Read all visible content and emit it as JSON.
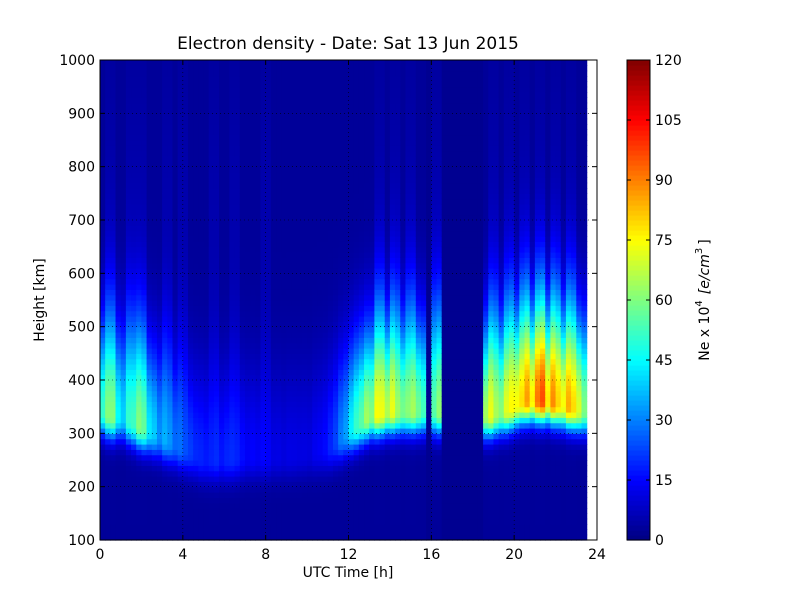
{
  "chart_data": {
    "type": "heatmap",
    "title": "Electron density - Date: Sat 13 Jun 2015",
    "xlabel": "UTC Time [h]",
    "ylabel": "Height [km]",
    "xlim": [
      0,
      24
    ],
    "ylim": [
      100,
      1000
    ],
    "x_ticks": [
      "0",
      "4",
      "8",
      "12",
      "16",
      "20",
      "24"
    ],
    "y_ticks": [
      "100",
      "200",
      "300",
      "400",
      "500",
      "600",
      "700",
      "800",
      "900",
      "1000"
    ],
    "grid": true,
    "colormap": "jet",
    "colorbar": {
      "label_prefix": "Ne x 10",
      "label_exp": "4",
      "label_unit": "[e/cm",
      "label_unit_exp": "3",
      "label_close": "]",
      "range": [
        0,
        120
      ],
      "ticks": [
        "0",
        "15",
        "30",
        "45",
        "60",
        "75",
        "90",
        "105",
        "120"
      ]
    },
    "time_step_h": 0.25,
    "data_end_h": 23.5,
    "gaps_h": [
      [
        15.75,
        16.0
      ],
      [
        16.5,
        18.5
      ]
    ],
    "profiles": [
      {
        "t": 0.0,
        "hmF2": 340,
        "peak": 60
      },
      {
        "t": 0.5,
        "hmF2": 330,
        "peak": 75
      },
      {
        "t": 1.0,
        "hmF2": 330,
        "peak": 55
      },
      {
        "t": 1.5,
        "hmF2": 320,
        "peak": 60
      },
      {
        "t": 2.0,
        "hmF2": 310,
        "peak": 70
      },
      {
        "t": 3.0,
        "hmF2": 290,
        "peak": 40
      },
      {
        "t": 4.0,
        "hmF2": 270,
        "peak": 30
      },
      {
        "t": 5.0,
        "hmF2": 250,
        "peak": 20
      },
      {
        "t": 6.0,
        "hmF2": 250,
        "peak": 22
      },
      {
        "t": 7.0,
        "hmF2": 255,
        "peak": 18
      },
      {
        "t": 8.0,
        "hmF2": 255,
        "peak": 14
      },
      {
        "t": 9.0,
        "hmF2": 255,
        "peak": 12
      },
      {
        "t": 10.0,
        "hmF2": 260,
        "peak": 12
      },
      {
        "t": 11.0,
        "hmF2": 270,
        "peak": 18
      },
      {
        "t": 12.0,
        "hmF2": 300,
        "peak": 50
      },
      {
        "t": 13.0,
        "hmF2": 330,
        "peak": 90
      },
      {
        "t": 14.0,
        "hmF2": 340,
        "peak": 85
      },
      {
        "t": 15.0,
        "hmF2": 340,
        "peak": 75
      },
      {
        "t": 16.0,
        "hmF2": 340,
        "peak": 70
      },
      {
        "t": 18.5,
        "hmF2": 330,
        "peak": 90
      },
      {
        "t": 19.5,
        "hmF2": 340,
        "peak": 80
      },
      {
        "t": 20.5,
        "hmF2": 360,
        "peak": 105
      },
      {
        "t": 21.5,
        "hmF2": 360,
        "peak": 110
      },
      {
        "t": 22.5,
        "hmF2": 350,
        "peak": 100
      },
      {
        "t": 23.5,
        "hmF2": 340,
        "peak": 85
      }
    ],
    "vertical_streaks_h": [
      0.5,
      1.5,
      2.0,
      3.25,
      4.0,
      5.5,
      6.5,
      8.0,
      13.5,
      14.25,
      15.0,
      16.25,
      19.0,
      19.75,
      20.5,
      21.25,
      22.0,
      22.75
    ]
  }
}
